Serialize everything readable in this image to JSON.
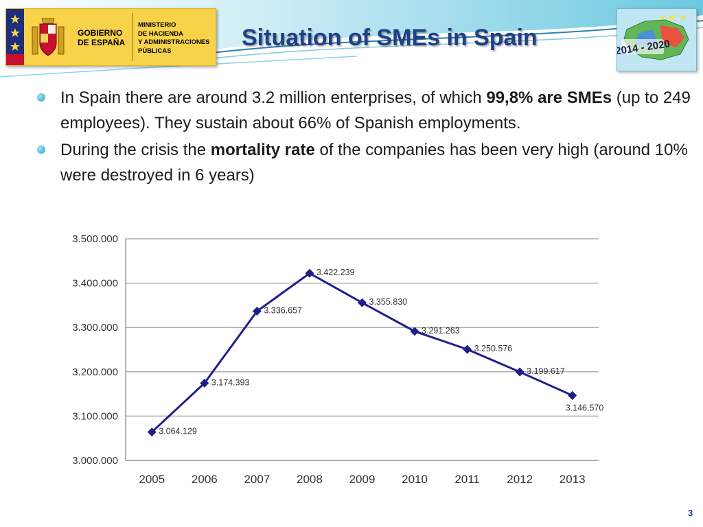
{
  "header": {
    "gov_logo": {
      "line1": "GOBIERNO",
      "line2": "DE ESPAÑA"
    },
    "ministry": {
      "line1": "MINISTERIO",
      "line2": "DE HACIENDA",
      "line3": "Y ADMINISTRACIONES",
      "line4": "PÚBLICAS"
    },
    "title": "Situation of SMEs in Spain",
    "eu_logo_text": "2014 - 2020"
  },
  "bullets": [
    {
      "t1": "In Spain there are around 3.2 million enterprises, of which ",
      "b1": "99,8% are SMEs",
      "t2": " (up to 249 employees). They sustain about 66% of Spanish employments."
    },
    {
      "t1": "During the crisis the ",
      "b1": "mortality rate",
      "t2": " of the companies has been very high (around 10% were destroyed in 6 years)"
    }
  ],
  "page_number": "3",
  "colors": {
    "title": "#1f3f86",
    "series": "#1f1f8a",
    "accent": "#f8d34a"
  },
  "chart_data": {
    "type": "line",
    "categories": [
      "2005",
      "2006",
      "2007",
      "2008",
      "2009",
      "2010",
      "2011",
      "2012",
      "2013"
    ],
    "values": [
      3064129,
      3174393,
      3336657,
      3422239,
      3355830,
      3291263,
      3250576,
      3199617,
      3146570
    ],
    "data_labels": [
      "3.064.129",
      "3.174.393",
      "3.336.657",
      "3.422.239",
      "3.355.830",
      "3.291.263",
      "3.250.576",
      "3.199.617",
      "3.146.570"
    ],
    "y_ticks": [
      3000000,
      3100000,
      3200000,
      3300000,
      3400000,
      3500000
    ],
    "y_tick_labels": [
      "3.000.000",
      "3.100.000",
      "3.200.000",
      "3.300.000",
      "3.400.000",
      "3.500.000"
    ],
    "ylim": [
      3000000,
      3500000
    ],
    "grid": true,
    "marker": "diamond",
    "title": "",
    "xlabel": "",
    "ylabel": ""
  }
}
